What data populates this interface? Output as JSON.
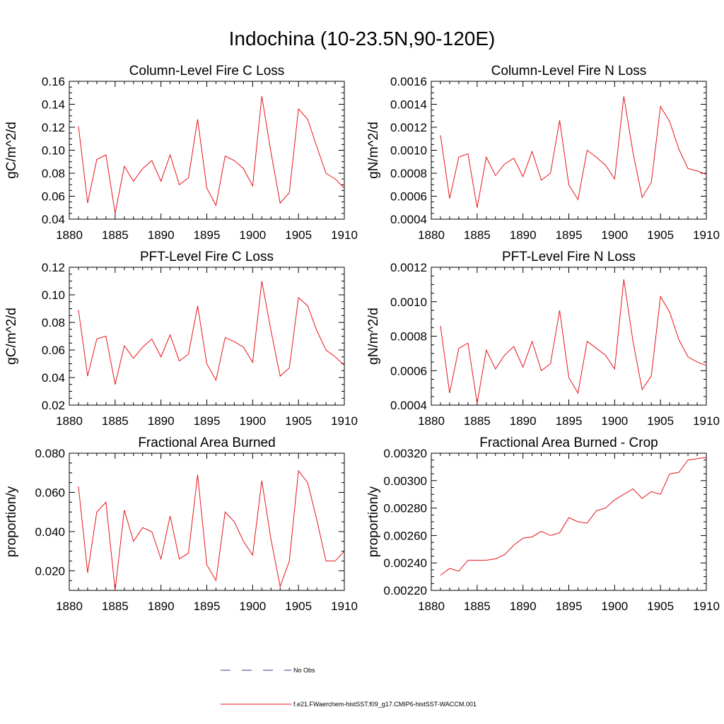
{
  "figure": {
    "title": "Indochina (10-23.5N,90-120E)"
  },
  "legend": {
    "entries": [
      {
        "label": "No Obs",
        "color": "#3b3b8f",
        "style": "dashed"
      },
      {
        "label": "f.e21.FWaerchem-histSST.f09_g17.CMIP6-histSST-WACCM.001",
        "color": "#e8141b",
        "style": "solid"
      }
    ]
  },
  "chart_data": [
    {
      "type": "line",
      "title": "Column-Level Fire C Loss",
      "ylabel": "gC/m^2/d",
      "xlim": [
        1880,
        1910
      ],
      "ylim": [
        0.04,
        0.16
      ],
      "xticks": [
        "1880",
        "1885",
        "1890",
        "1895",
        "1900",
        "1905",
        "1910"
      ],
      "yticks": [
        "0.04",
        "0.06",
        "0.08",
        "0.10",
        "0.12",
        "0.14",
        "0.16"
      ],
      "x": [
        1881,
        1882,
        1883,
        1884,
        1885,
        1886,
        1887,
        1888,
        1889,
        1890,
        1891,
        1892,
        1893,
        1894,
        1895,
        1896,
        1897,
        1898,
        1899,
        1900,
        1901,
        1902,
        1903,
        1904,
        1905,
        1906,
        1907,
        1908,
        1909,
        1910
      ],
      "series": [
        {
          "values": [
            0.121,
            0.054,
            0.092,
            0.096,
            0.045,
            0.086,
            0.073,
            0.084,
            0.091,
            0.073,
            0.096,
            0.07,
            0.076,
            0.127,
            0.067,
            0.052,
            0.095,
            0.091,
            0.084,
            0.069,
            0.147,
            0.098,
            0.054,
            0.063,
            0.136,
            0.127,
            0.103,
            0.08,
            0.075,
            0.067
          ]
        }
      ]
    },
    {
      "type": "line",
      "title": "Column-Level Fire N Loss",
      "ylabel": "gN/m^2/d",
      "xlim": [
        1880,
        1910
      ],
      "ylim": [
        0.0004,
        0.0016
      ],
      "xticks": [
        "1880",
        "1885",
        "1890",
        "1895",
        "1900",
        "1905",
        "1910"
      ],
      "yticks": [
        "0.0004",
        "0.0006",
        "0.0008",
        "0.0010",
        "0.0012",
        "0.0014",
        "0.0016"
      ],
      "x": [
        1881,
        1882,
        1883,
        1884,
        1885,
        1886,
        1887,
        1888,
        1889,
        1890,
        1891,
        1892,
        1893,
        1894,
        1895,
        1896,
        1897,
        1898,
        1899,
        1900,
        1901,
        1902,
        1903,
        1904,
        1905,
        1906,
        1907,
        1908,
        1909,
        1910
      ],
      "series": [
        {
          "values": [
            0.00113,
            0.00058,
            0.00094,
            0.00097,
            0.0005,
            0.00094,
            0.00078,
            0.00088,
            0.00093,
            0.00077,
            0.00099,
            0.00074,
            0.0008,
            0.00126,
            0.0007,
            0.00057,
            0.001,
            0.00094,
            0.00087,
            0.00075,
            0.00147,
            0.00098,
            0.00059,
            0.00072,
            0.00138,
            0.00125,
            0.00101,
            0.00084,
            0.00082,
            0.00079
          ]
        }
      ]
    },
    {
      "type": "line",
      "title": "PFT-Level Fire C Loss",
      "ylabel": "gC/m^2/d",
      "xlim": [
        1880,
        1910
      ],
      "ylim": [
        0.02,
        0.12
      ],
      "xticks": [
        "1880",
        "1885",
        "1890",
        "1895",
        "1900",
        "1905",
        "1910"
      ],
      "yticks": [
        "0.02",
        "0.04",
        "0.06",
        "0.08",
        "0.10",
        "0.12"
      ],
      "x": [
        1881,
        1882,
        1883,
        1884,
        1885,
        1886,
        1887,
        1888,
        1889,
        1890,
        1891,
        1892,
        1893,
        1894,
        1895,
        1896,
        1897,
        1898,
        1899,
        1900,
        1901,
        1902,
        1903,
        1904,
        1905,
        1906,
        1907,
        1908,
        1909,
        1910
      ],
      "series": [
        {
          "values": [
            0.089,
            0.041,
            0.068,
            0.07,
            0.035,
            0.063,
            0.054,
            0.062,
            0.068,
            0.055,
            0.071,
            0.052,
            0.057,
            0.092,
            0.05,
            0.038,
            0.069,
            0.066,
            0.062,
            0.051,
            0.11,
            0.074,
            0.041,
            0.047,
            0.098,
            0.092,
            0.074,
            0.06,
            0.055,
            0.049
          ]
        }
      ]
    },
    {
      "type": "line",
      "title": "PFT-Level Fire N Loss",
      "ylabel": "gN/m^2/d",
      "xlim": [
        1880,
        1910
      ],
      "ylim": [
        0.0004,
        0.0012
      ],
      "xticks": [
        "1880",
        "1885",
        "1890",
        "1895",
        "1900",
        "1905",
        "1910"
      ],
      "yticks": [
        "0.0004",
        "0.0006",
        "0.0008",
        "0.0010",
        "0.0012"
      ],
      "x": [
        1881,
        1882,
        1883,
        1884,
        1885,
        1886,
        1887,
        1888,
        1889,
        1890,
        1891,
        1892,
        1893,
        1894,
        1895,
        1896,
        1897,
        1898,
        1899,
        1900,
        1901,
        1902,
        1903,
        1904,
        1905,
        1906,
        1907,
        1908,
        1909,
        1910
      ],
      "series": [
        {
          "values": [
            0.00086,
            0.00047,
            0.00073,
            0.00076,
            0.00041,
            0.00072,
            0.00061,
            0.00069,
            0.00074,
            0.00062,
            0.00077,
            0.0006,
            0.00064,
            0.00095,
            0.00056,
            0.00047,
            0.00077,
            0.00073,
            0.00069,
            0.00061,
            0.00113,
            0.00077,
            0.00049,
            0.00057,
            0.00103,
            0.00094,
            0.00078,
            0.00068,
            0.00065,
            0.00063
          ]
        }
      ]
    },
    {
      "type": "line",
      "title": "Fractional Area Burned",
      "ylabel": "proportion/y",
      "xlim": [
        1880,
        1910
      ],
      "ylim": [
        0.01,
        0.08
      ],
      "xticks": [
        "1880",
        "1885",
        "1890",
        "1895",
        "1900",
        "1905",
        "1910"
      ],
      "yticks": [
        "0.020",
        "0.040",
        "0.060",
        "0.080"
      ],
      "x": [
        1881,
        1882,
        1883,
        1884,
        1885,
        1886,
        1887,
        1888,
        1889,
        1890,
        1891,
        1892,
        1893,
        1894,
        1895,
        1896,
        1897,
        1898,
        1899,
        1900,
        1901,
        1902,
        1903,
        1904,
        1905,
        1906,
        1907,
        1908,
        1909,
        1910
      ],
      "series": [
        {
          "values": [
            0.063,
            0.019,
            0.05,
            0.055,
            0.01,
            0.051,
            0.035,
            0.042,
            0.04,
            0.026,
            0.048,
            0.026,
            0.029,
            0.069,
            0.023,
            0.015,
            0.05,
            0.045,
            0.035,
            0.028,
            0.066,
            0.036,
            0.012,
            0.025,
            0.071,
            0.065,
            0.046,
            0.025,
            0.025,
            0.03
          ]
        }
      ]
    },
    {
      "type": "line",
      "title": "Fractional Area Burned - Crop",
      "ylabel": "proportion/y",
      "xlim": [
        1880,
        1910
      ],
      "ylim": [
        0.0022,
        0.0032
      ],
      "xticks": [
        "1880",
        "1885",
        "1890",
        "1895",
        "1900",
        "1905",
        "1910"
      ],
      "yticks": [
        "0.00220",
        "0.00240",
        "0.00260",
        "0.00280",
        "0.00300",
        "0.00320"
      ],
      "x": [
        1881,
        1882,
        1883,
        1884,
        1885,
        1886,
        1887,
        1888,
        1889,
        1890,
        1891,
        1892,
        1893,
        1894,
        1895,
        1896,
        1897,
        1898,
        1899,
        1900,
        1901,
        1902,
        1903,
        1904,
        1905,
        1906,
        1907,
        1908,
        1909,
        1910
      ],
      "series": [
        {
          "values": [
            0.00231,
            0.00236,
            0.00234,
            0.00242,
            0.00242,
            0.00242,
            0.00243,
            0.00246,
            0.00253,
            0.00258,
            0.00259,
            0.00263,
            0.0026,
            0.00262,
            0.00273,
            0.0027,
            0.00269,
            0.00278,
            0.0028,
            0.00286,
            0.0029,
            0.00294,
            0.00287,
            0.00292,
            0.0029,
            0.00305,
            0.00306,
            0.00315,
            0.00316,
            0.00317
          ]
        }
      ]
    }
  ]
}
